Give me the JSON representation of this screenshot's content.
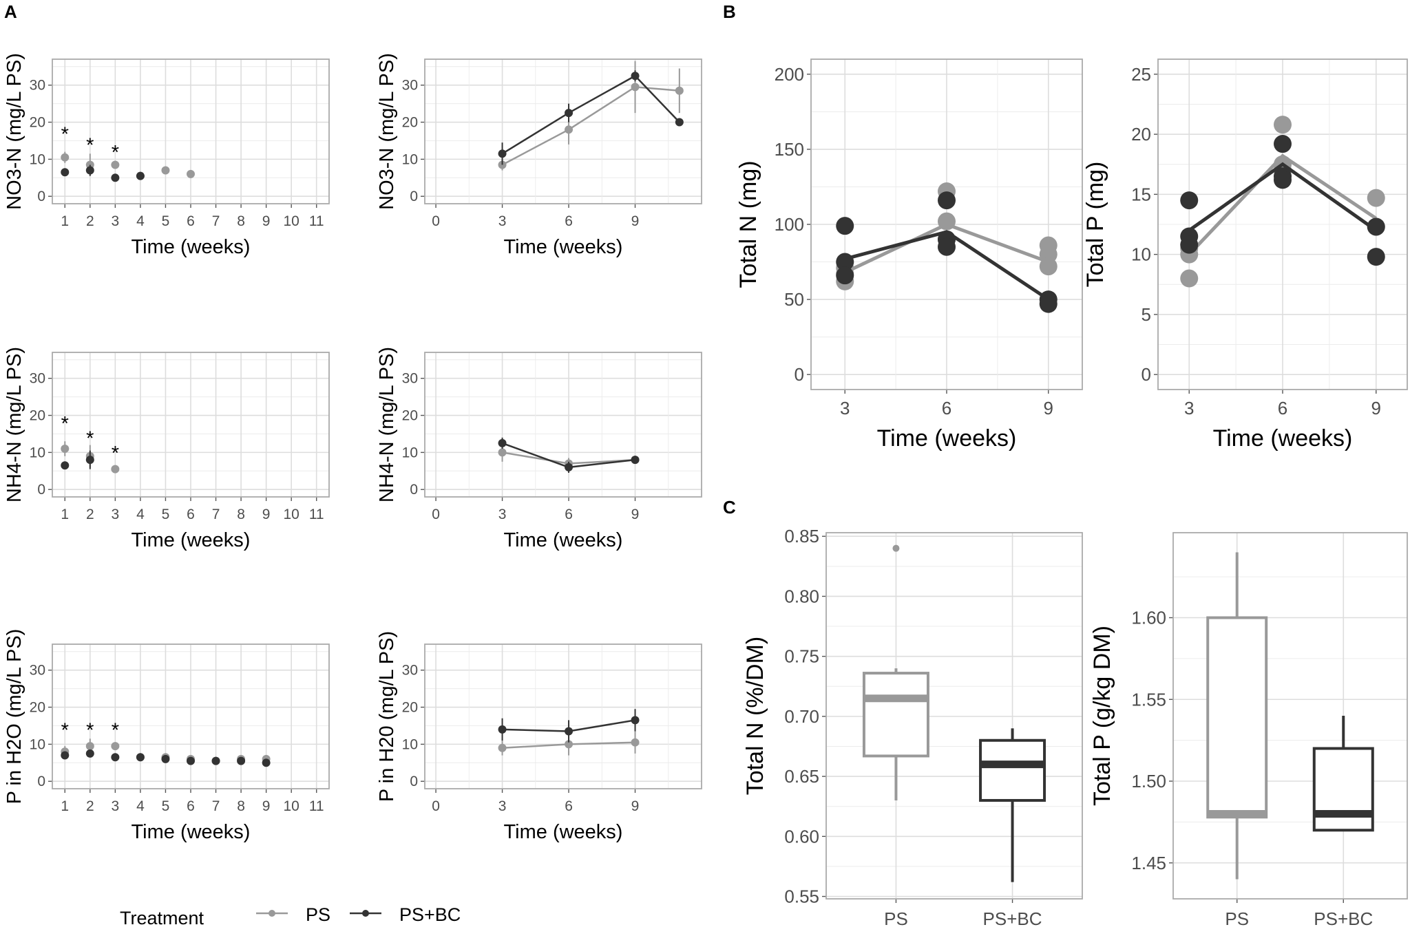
{
  "panel_labels": [
    "A",
    "B",
    "C"
  ],
  "colors": {
    "ps": "#999999",
    "psbc": "#333333",
    "grid": "#dddddd",
    "frame": "#aaaaaa"
  },
  "legend": {
    "title": "Treatment",
    "items": [
      "PS",
      "PS+BC"
    ]
  },
  "chart_data": [
    {
      "id": "A1",
      "type": "line",
      "panel": "A",
      "xlabel": "Time (weeks)",
      "ylabel": "NO3-N (mg/L PS)",
      "xlim": [
        0.5,
        11.5
      ],
      "ylim": [
        -2,
        37
      ],
      "xticks": [
        1,
        2,
        3,
        4,
        5,
        6,
        7,
        8,
        9,
        10,
        11
      ],
      "yticks": [
        0,
        10,
        20,
        30
      ],
      "lines": false,
      "series": [
        {
          "name": "PS",
          "x": [
            1,
            2,
            3,
            4,
            5,
            6
          ],
          "values": [
            10.5,
            8.5,
            8.5,
            5.5,
            7,
            6
          ],
          "err": [
            1.5,
            3,
            0.8,
            0.5,
            0.8,
            0.6
          ]
        },
        {
          "name": "PS+BC",
          "x": [
            1,
            2,
            3,
            4
          ],
          "values": [
            6.5,
            7,
            5,
            5.5
          ],
          "err": [
            1,
            1.5,
            0.5,
            0.5
          ]
        }
      ],
      "annotations": [
        {
          "text": "*",
          "x": 1,
          "y": 18
        },
        {
          "text": "*",
          "x": 2,
          "y": 15
        },
        {
          "text": "*",
          "x": 3,
          "y": 13
        }
      ]
    },
    {
      "id": "A2",
      "type": "line",
      "panel": "A",
      "xlabel": "Time (weeks)",
      "ylabel": "NO3-N (mg/L PS)",
      "xlim": [
        -0.5,
        12
      ],
      "ylim": [
        -2,
        37
      ],
      "xticks": [
        0,
        3,
        6,
        9
      ],
      "yticks": [
        0,
        10,
        20,
        30
      ],
      "lines": true,
      "series": [
        {
          "name": "PS",
          "x": [
            3,
            6,
            9,
            11
          ],
          "values": [
            8.5,
            18,
            29.5,
            28.5
          ],
          "err": [
            1.5,
            4,
            7,
            6
          ]
        },
        {
          "name": "PS+BC",
          "x": [
            3,
            6,
            9,
            11
          ],
          "values": [
            11.5,
            22.5,
            32.5,
            20
          ],
          "err": [
            3,
            2.5,
            1.5,
            1
          ]
        }
      ],
      "annotations": []
    },
    {
      "id": "A3",
      "type": "line",
      "panel": "A",
      "xlabel": "Time (weeks)",
      "ylabel": "NH4-N (mg/L PS)",
      "xlim": [
        0.5,
        11.5
      ],
      "ylim": [
        -2,
        37
      ],
      "xticks": [
        1,
        2,
        3,
        4,
        5,
        6,
        7,
        8,
        9,
        10,
        11
      ],
      "yticks": [
        0,
        10,
        20,
        30
      ],
      "lines": false,
      "series": [
        {
          "name": "PS",
          "x": [
            1,
            2,
            3
          ],
          "values": [
            11,
            9,
            5.5
          ],
          "err": [
            2,
            3,
            0.5
          ]
        },
        {
          "name": "PS+BC",
          "x": [
            1,
            2
          ],
          "values": [
            6.5,
            8
          ],
          "err": [
            1,
            2.5
          ]
        }
      ],
      "annotations": [
        {
          "text": "*",
          "x": 1,
          "y": 19
        },
        {
          "text": "*",
          "x": 2,
          "y": 15
        },
        {
          "text": "*",
          "x": 3,
          "y": 11
        }
      ]
    },
    {
      "id": "A4",
      "type": "line",
      "panel": "A",
      "xlabel": "Time (weeks)",
      "ylabel": "NH4-N (mg/L PS)",
      "xlim": [
        -0.5,
        12
      ],
      "ylim": [
        -2,
        37
      ],
      "xticks": [
        0,
        3,
        6,
        9
      ],
      "yticks": [
        0,
        10,
        20,
        30
      ],
      "lines": true,
      "series": [
        {
          "name": "PS",
          "x": [
            3,
            6,
            9
          ],
          "values": [
            10,
            7,
            8
          ],
          "err": [
            2.5,
            1.5,
            0.5
          ]
        },
        {
          "name": "PS+BC",
          "x": [
            3,
            6,
            9
          ],
          "values": [
            12.5,
            6,
            8
          ],
          "err": [
            1.5,
            1.5,
            0.5
          ]
        }
      ],
      "annotations": []
    },
    {
      "id": "A5",
      "type": "line",
      "panel": "A",
      "xlabel": "Time (weeks)",
      "ylabel": "P in H2O (mg/L PS)",
      "xlim": [
        0.5,
        11.5
      ],
      "ylim": [
        -2,
        37
      ],
      "xticks": [
        1,
        2,
        3,
        4,
        5,
        6,
        7,
        8,
        9,
        10,
        11
      ],
      "yticks": [
        0,
        10,
        20,
        30
      ],
      "lines": false,
      "series": [
        {
          "name": "PS",
          "x": [
            1,
            2,
            3,
            4,
            5,
            6,
            7,
            8,
            9
          ],
          "values": [
            8,
            9.5,
            9.5,
            6.5,
            6.5,
            6,
            5.5,
            6,
            6
          ],
          "err": [
            1.5,
            2,
            1,
            0.8,
            0.8,
            0.8,
            0.8,
            0.8,
            0.8
          ]
        },
        {
          "name": "PS+BC",
          "x": [
            1,
            2,
            3,
            4,
            5,
            6,
            7,
            8,
            9
          ],
          "values": [
            7,
            7.5,
            6.5,
            6.5,
            6,
            5.5,
            5.5,
            5.5,
            5
          ],
          "err": [
            1,
            1,
            0.6,
            0.6,
            0.6,
            0.6,
            0.6,
            0.6,
            0.6
          ]
        }
      ],
      "annotations": [
        {
          "text": "*",
          "x": 1,
          "y": 15
        },
        {
          "text": "*",
          "x": 2,
          "y": 15
        },
        {
          "text": "*",
          "x": 3,
          "y": 15
        }
      ]
    },
    {
      "id": "A6",
      "type": "line",
      "panel": "A",
      "xlabel": "Time (weeks)",
      "ylabel": "P in H20 (mg/L PS)",
      "xlim": [
        -0.5,
        12
      ],
      "ylim": [
        -2,
        37
      ],
      "xticks": [
        0,
        3,
        6,
        9
      ],
      "yticks": [
        0,
        10,
        20,
        30
      ],
      "lines": true,
      "series": [
        {
          "name": "PS",
          "x": [
            3,
            6,
            9
          ],
          "values": [
            9,
            10,
            10.5
          ],
          "err": [
            2,
            3,
            3
          ]
        },
        {
          "name": "PS+BC",
          "x": [
            3,
            6,
            9
          ],
          "values": [
            14,
            13.5,
            16.5
          ],
          "err": [
            3,
            3,
            3
          ]
        }
      ],
      "annotations": []
    },
    {
      "id": "B1",
      "type": "scatter",
      "panel": "B",
      "xlabel": "Time (weeks)",
      "ylabel": "Total N (mg)",
      "xlim": [
        2,
        10
      ],
      "ylim": [
        -10,
        210
      ],
      "xticks": [
        3,
        6,
        9
      ],
      "yticks": [
        0,
        50,
        100,
        150,
        200
      ],
      "series": [
        {
          "name": "PS",
          "x": [
            3,
            6,
            9
          ],
          "values": [
            68,
            100,
            75
          ],
          "points": [
            [
              3,
              62
            ],
            [
              3,
              67
            ],
            [
              3,
              71
            ],
            [
              6,
              122
            ],
            [
              6,
              102
            ],
            [
              6,
              90
            ],
            [
              9,
              86
            ],
            [
              9,
              80
            ],
            [
              9,
              72
            ]
          ]
        },
        {
          "name": "PS+BC",
          "x": [
            3,
            6,
            9
          ],
          "values": [
            77,
            95,
            50
          ],
          "points": [
            [
              3,
              99
            ],
            [
              3,
              75
            ],
            [
              3,
              66
            ],
            [
              6,
              116
            ],
            [
              6,
              90
            ],
            [
              6,
              85
            ],
            [
              9,
              50
            ],
            [
              9,
              47
            ]
          ]
        }
      ]
    },
    {
      "id": "B2",
      "type": "scatter",
      "panel": "B",
      "xlabel": "Time (weeks)",
      "ylabel": "Total P (mg)",
      "xlim": [
        2,
        10
      ],
      "ylim": [
        -1.25,
        26.25
      ],
      "xticks": [
        3,
        6,
        9
      ],
      "yticks": [
        0,
        5,
        10,
        15,
        20,
        25
      ],
      "series": [
        {
          "name": "PS",
          "x": [
            3,
            6,
            9
          ],
          "values": [
            10,
            18.2,
            13
          ],
          "points": [
            [
              3,
              8
            ],
            [
              3,
              10.5
            ],
            [
              3,
              10
            ],
            [
              6,
              20.8
            ],
            [
              6,
              17.5
            ],
            [
              6,
              17
            ],
            [
              9,
              14.7
            ],
            [
              9,
              12.3
            ]
          ]
        },
        {
          "name": "PS+BC",
          "x": [
            3,
            6,
            9
          ],
          "values": [
            12,
            17.5,
            12
          ],
          "points": [
            [
              3,
              14.5
            ],
            [
              3,
              11.5
            ],
            [
              3,
              10.8
            ],
            [
              6,
              19.2
            ],
            [
              6,
              16.5
            ],
            [
              6,
              16.2
            ],
            [
              9,
              12.3
            ],
            [
              9,
              9.8
            ]
          ]
        }
      ]
    },
    {
      "id": "C1",
      "type": "box",
      "panel": "C",
      "xlabel": "",
      "ylabel": "Total N (%/DM)",
      "categories": [
        "PS",
        "PS+BC"
      ],
      "ylim": [
        0.548,
        0.853
      ],
      "yticks": [
        0.55,
        0.6,
        0.65,
        0.7,
        0.75,
        0.8,
        0.85
      ],
      "ytick_labels": [
        "0.55",
        "0.60",
        "0.65",
        "0.70",
        "0.75",
        "0.80",
        "0.85"
      ],
      "boxes": [
        {
          "name": "PS",
          "min": 0.63,
          "q1": 0.667,
          "median": 0.715,
          "q3": 0.736,
          "max": 0.74,
          "outliers": [
            0.84
          ]
        },
        {
          "name": "PS+BC",
          "min": 0.562,
          "q1": 0.63,
          "median": 0.66,
          "q3": 0.68,
          "max": 0.69,
          "outliers": []
        }
      ]
    },
    {
      "id": "C2",
      "type": "box",
      "panel": "C",
      "xlabel": "",
      "ylabel": "Total P (g/kg DM)",
      "categories": [
        "PS",
        "PS+BC"
      ],
      "ylim": [
        1.428,
        1.652
      ],
      "yticks": [
        1.45,
        1.5,
        1.55,
        1.6
      ],
      "ytick_labels": [
        "1.45",
        "1.50",
        "1.55",
        "1.60"
      ],
      "boxes": [
        {
          "name": "PS",
          "min": 1.44,
          "q1": 1.478,
          "median": 1.48,
          "q3": 1.6,
          "max": 1.64,
          "outliers": []
        },
        {
          "name": "PS+BC",
          "min": 1.47,
          "q1": 1.47,
          "median": 1.48,
          "q3": 1.52,
          "max": 1.54,
          "outliers": []
        }
      ]
    }
  ]
}
